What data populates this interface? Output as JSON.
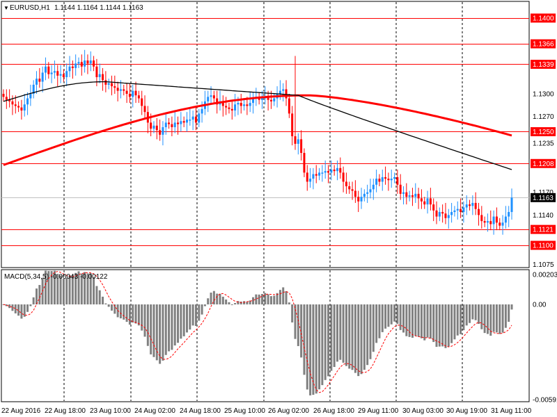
{
  "header": {
    "symbol": "EURUSD,H1",
    "ohlc": "1.1144 1.1164 1.1144 1.1163"
  },
  "macd_header": "MACD(5,34,5) -0.00043 -0.00122",
  "colors": {
    "up": "#1e90ff",
    "down": "#ff0000",
    "level": "#ff0000",
    "ma_slow": "#ff0000",
    "ma_fast": "#000000",
    "macd_hist": "#808080",
    "macd_signal": "#ff0000",
    "current_price_box": "#000000"
  },
  "chart_data": [
    {
      "type": "candlestick",
      "title": "EURUSD,H1",
      "ylim": [
        1.1061,
        1.1424
      ],
      "y_ticks": [
        "1.1400",
        "1.1366",
        "1.1339",
        "1.1300",
        "1.1270",
        "1.1250",
        "1.1235",
        "1.1208",
        "1.1170",
        "1.1163",
        "1.1140",
        "1.1121",
        "1.1100",
        "1.1075"
      ],
      "levels": [
        1.14,
        1.1366,
        1.1339,
        1.125,
        1.1208,
        1.1121,
        1.11
      ],
      "current_price": "1.1163",
      "x_ticks": [
        "22 Aug 2016",
        "22 Aug 18:00",
        "23 Aug 10:00",
        "24 Aug 02:00",
        "24 Aug 18:00",
        "25 Aug 10:00",
        "26 Aug 02:00",
        "26 Aug 18:00",
        "29 Aug 11:00",
        "30 Aug 03:00",
        "30 Aug 19:00",
        "31 Aug 11:00"
      ],
      "grid": "vertical dashed",
      "closes": [
        1.1296,
        1.1292,
        1.129,
        1.1286,
        1.1284,
        1.1282,
        1.1278,
        1.1286,
        1.1294,
        1.13,
        1.1312,
        1.132,
        1.1316,
        1.1328,
        1.1336,
        1.1326,
        1.1328,
        1.133,
        1.1324,
        1.1326,
        1.1322,
        1.133,
        1.1336,
        1.1334,
        1.134,
        1.1342,
        1.1336,
        1.1344,
        1.134,
        1.1344,
        1.1336,
        1.1322,
        1.1326,
        1.1318,
        1.1312,
        1.1314,
        1.131,
        1.1308,
        1.1304,
        1.1306,
        1.1304,
        1.13,
        1.1296,
        1.1304,
        1.1298,
        1.1294,
        1.1284,
        1.1276,
        1.1262,
        1.1254,
        1.1258,
        1.1252,
        1.1246,
        1.1256,
        1.1262,
        1.126,
        1.1256,
        1.1262,
        1.126,
        1.1264,
        1.1262,
        1.1266,
        1.1266,
        1.127,
        1.1262,
        1.1274,
        1.128,
        1.129,
        1.1296,
        1.1298,
        1.1294,
        1.1286,
        1.129,
        1.1284,
        1.1282,
        1.128,
        1.1278,
        1.1286,
        1.1288,
        1.1284,
        1.1286,
        1.1284,
        1.1288,
        1.1294,
        1.1296,
        1.1292,
        1.1294,
        1.1296,
        1.1292,
        1.129,
        1.1294,
        1.13,
        1.1304,
        1.1306,
        1.1294,
        1.1274,
        1.1244,
        1.1234,
        1.124,
        1.1222,
        1.1196,
        1.1184,
        1.1188,
        1.1194,
        1.1192,
        1.1196,
        1.1196,
        1.1198,
        1.1196,
        1.12,
        1.1198,
        1.1202,
        1.1196,
        1.1184,
        1.1178,
        1.1174,
        1.1172,
        1.1164,
        1.1158,
        1.1164,
        1.1168,
        1.117,
        1.1174,
        1.118,
        1.1188,
        1.1184,
        1.119,
        1.1188,
        1.1186,
        1.1188,
        1.119,
        1.118,
        1.1168,
        1.117,
        1.1164,
        1.1166,
        1.1164,
        1.1168,
        1.1162,
        1.1158,
        1.1154,
        1.1162,
        1.1154,
        1.1146,
        1.1138,
        1.1144,
        1.1142,
        1.1136,
        1.114,
        1.1144,
        1.1146,
        1.1148,
        1.1144,
        1.115,
        1.1154,
        1.1152,
        1.1156,
        1.1148,
        1.114,
        1.1132,
        1.113,
        1.1132,
        1.1128,
        1.1138,
        1.113,
        1.1126,
        1.113,
        1.1138,
        1.1144,
        1.1163
      ],
      "ma_slow_start_end": [
        1.1206,
        1.1245
      ],
      "ma_fast_peak_end": [
        1.1316,
        1.12
      ]
    },
    {
      "type": "bar",
      "title": "MACD(5,34,5)",
      "ylim": [
        -0.00591,
        0.00203
      ],
      "y_ticks": [
        "0.00203",
        "0.00",
        "-0.00591"
      ],
      "signal_line": "dashed"
    }
  ]
}
